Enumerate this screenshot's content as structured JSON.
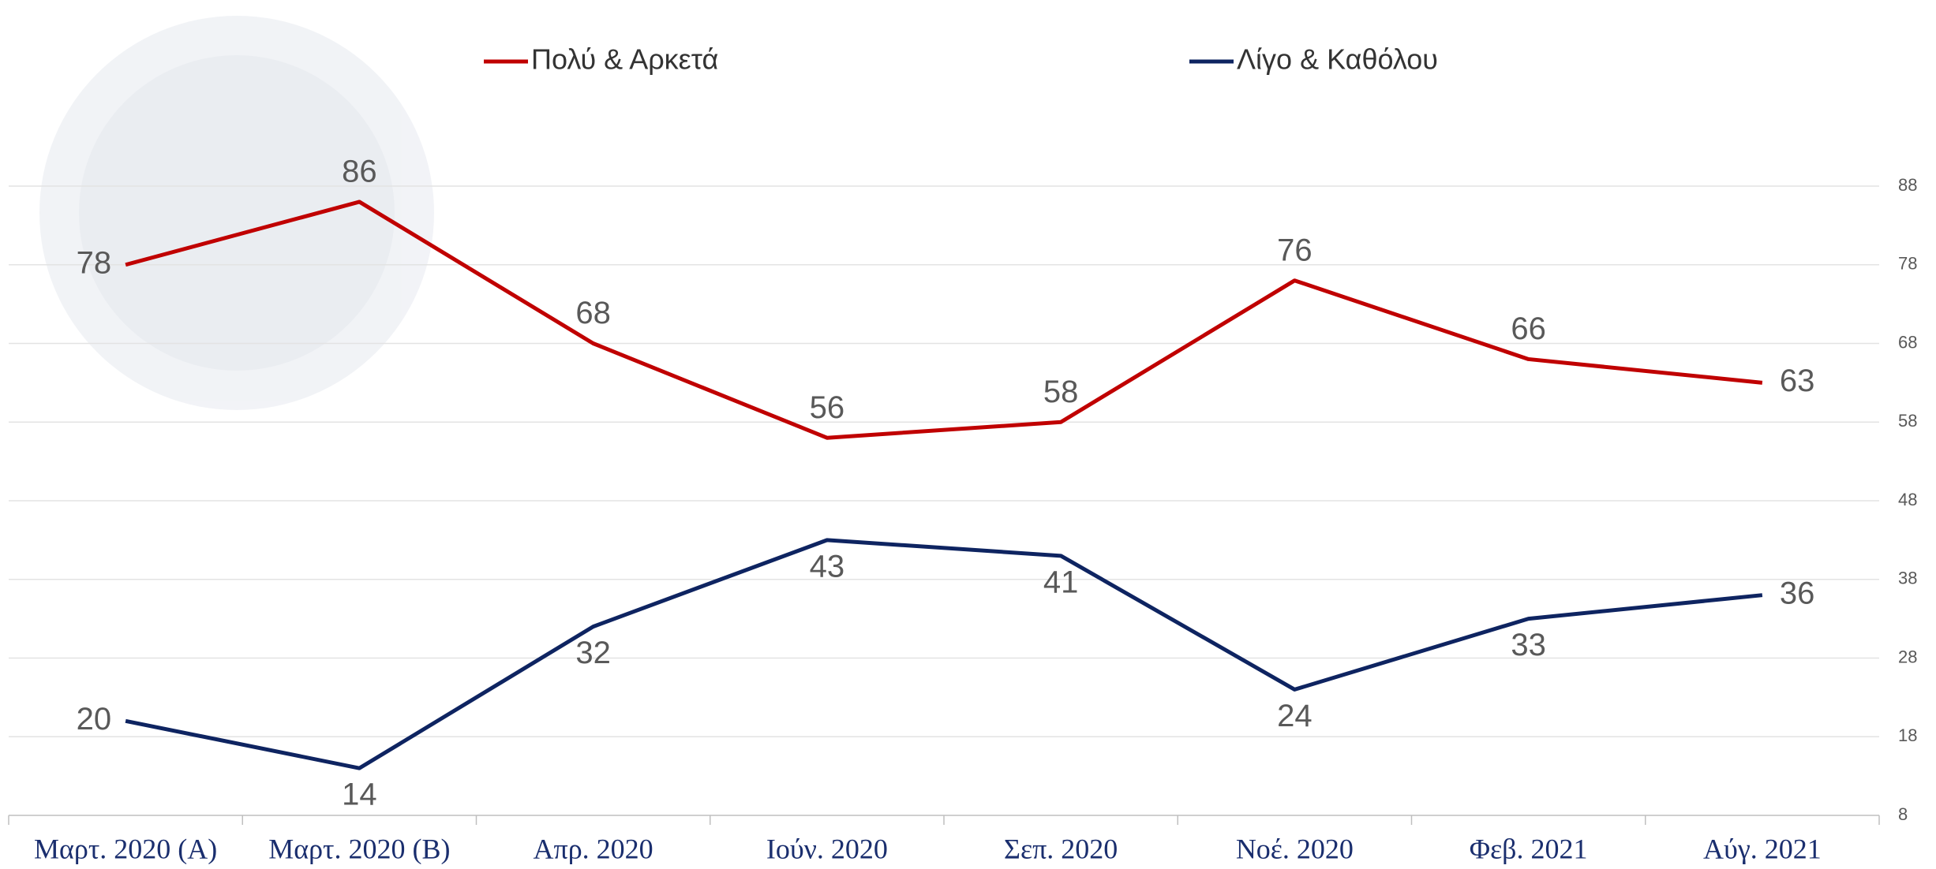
{
  "chart_data": {
    "type": "line",
    "categories": [
      "Μαρτ. 2020 (Α)",
      "Μαρτ. 2020 (Β)",
      "Απρ. 2020",
      "Ιούν. 2020",
      "Σεπ. 2020",
      "Νοέ. 2020",
      "Φεβ. 2021",
      "Αύγ. 2021"
    ],
    "series": [
      {
        "name": "Πολύ & Αρκετά",
        "color": "#c00000",
        "values": [
          78,
          86,
          68,
          56,
          58,
          76,
          66,
          63
        ]
      },
      {
        "name": "Λίγο & Καθόλου",
        "color": "#0e2461",
        "values": [
          20,
          14,
          32,
          43,
          41,
          24,
          33,
          36
        ]
      }
    ],
    "ylim": [
      8,
      88
    ],
    "yticks": [
      8,
      18,
      28,
      38,
      48,
      58,
      68,
      78,
      88
    ],
    "grid": true,
    "legend": "top"
  }
}
